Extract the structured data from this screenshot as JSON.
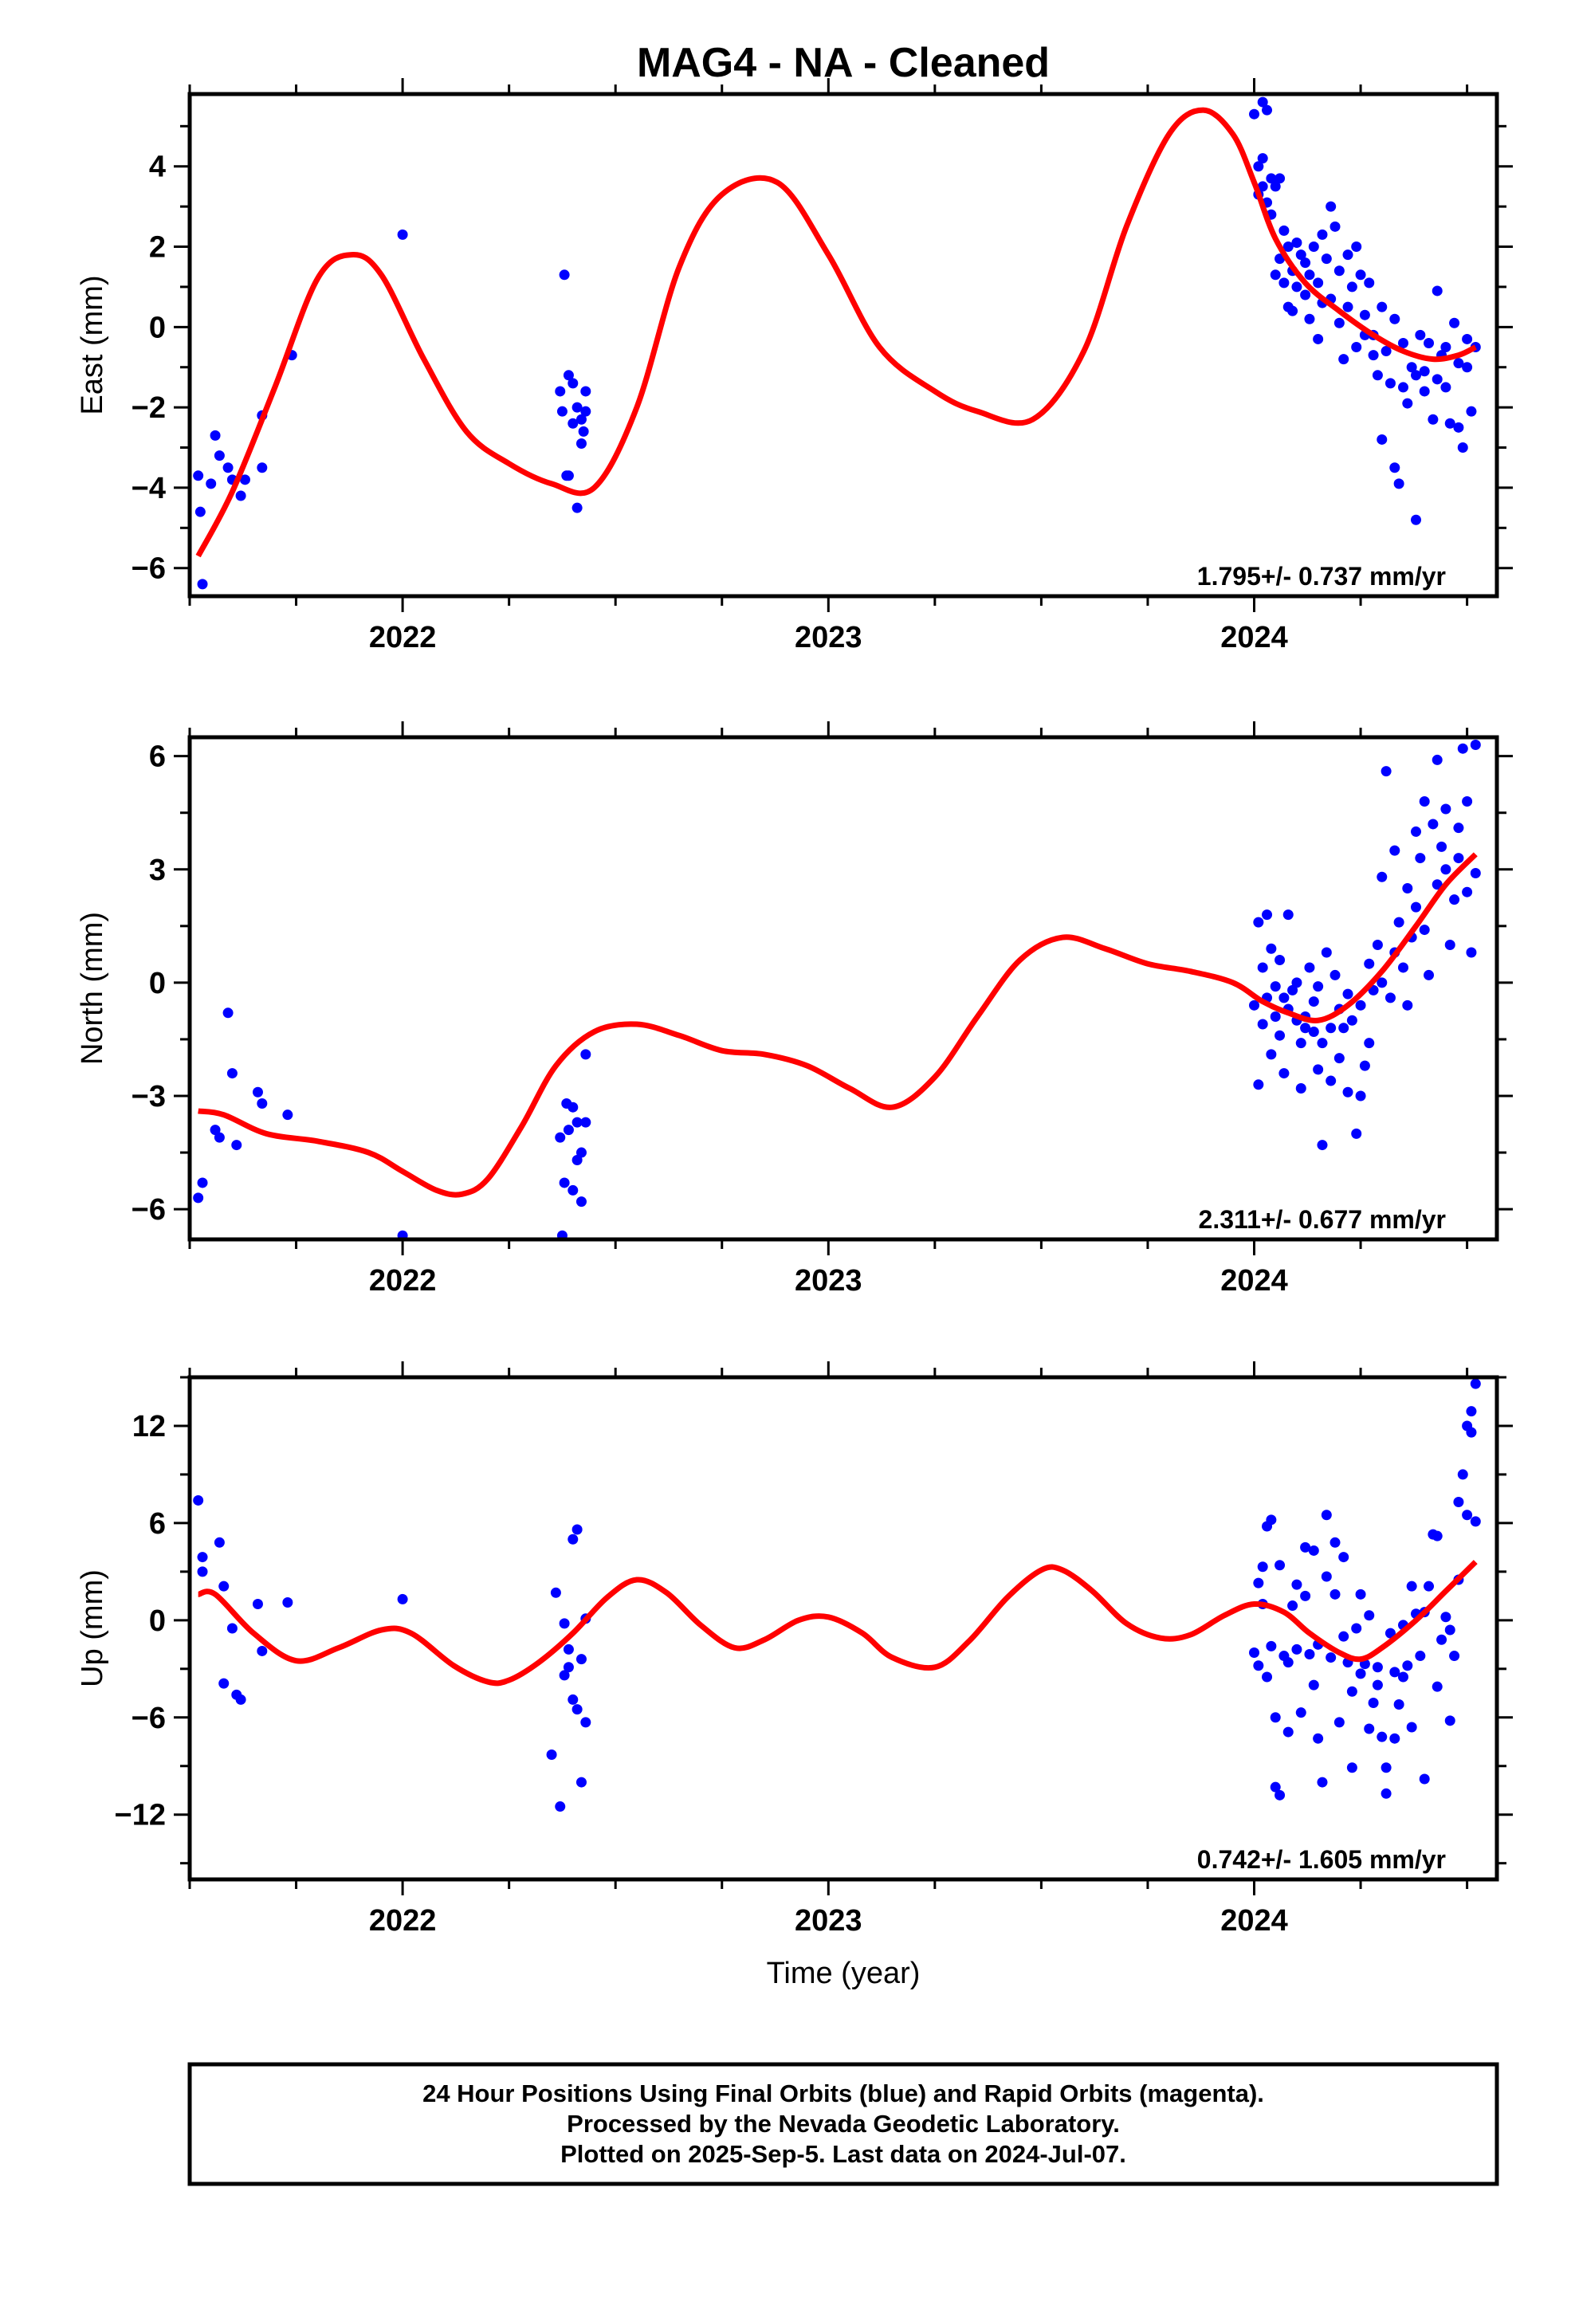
{
  "title": "MAG4  - NA - Cleaned",
  "footer": {
    "lines": [
      "24 Hour Positions Using Final Orbits (blue) and Rapid Orbits (magenta).",
      "Processed by the Nevada Geodetic Laboratory.",
      "Plotted on 2025-Sep-5. Last data on 2024-Jul-07."
    ]
  },
  "colors": {
    "data_points": "#0000ff",
    "model_curve": "#ff0000",
    "axes": "#000000"
  },
  "chart_data": [
    {
      "type": "scatter",
      "name": "east",
      "ylabel": "East (mm)",
      "xlabel": "",
      "xlim": [
        2021.5,
        2024.57
      ],
      "ylim": [
        -6.7,
        5.8
      ],
      "x_ticks": [
        2022,
        2023,
        2024
      ],
      "y_ticks": [
        -6,
        -4,
        -2,
        0,
        2,
        4
      ],
      "rate_text": "1.795+/- 0.737 mm/yr",
      "model_curve": {
        "x": [
          2021.52,
          2021.6,
          2021.7,
          2021.8,
          2021.88,
          2021.95,
          2022.05,
          2022.15,
          2022.25,
          2022.35,
          2022.45,
          2022.55,
          2022.65,
          2022.75,
          2022.88,
          2023.0,
          2023.12,
          2023.25,
          2023.35,
          2023.48,
          2023.6,
          2023.7,
          2023.8,
          2023.88,
          2023.95,
          2024.0,
          2024.05,
          2024.12,
          2024.2,
          2024.28,
          2024.35,
          2024.42,
          2024.48,
          2024.52
        ],
        "y": [
          -5.7,
          -4.1,
          -1.5,
          1.2,
          1.8,
          1.3,
          -0.8,
          -2.6,
          -3.4,
          -3.9,
          -4.0,
          -2.0,
          1.5,
          3.3,
          3.6,
          1.8,
          -0.5,
          -1.6,
          -2.1,
          -2.3,
          -0.6,
          2.5,
          4.8,
          5.4,
          4.8,
          3.6,
          2.2,
          1.1,
          0.4,
          -0.2,
          -0.6,
          -0.8,
          -0.7,
          -0.5
        ]
      },
      "points": {
        "x": [
          2021.52,
          2021.525,
          2021.53,
          2021.55,
          2021.56,
          2021.57,
          2021.59,
          2021.6,
          2021.62,
          2021.63,
          2021.67,
          2021.67,
          2021.74,
          2022.0,
          2022.37,
          2022.375,
          2022.38,
          2022.385,
          2022.39,
          2022.39,
          2022.4,
          2022.4,
          2022.41,
          2022.41,
          2022.42,
          2022.42,
          2022.425,
          2022.43,
          2022.43,
          2024.0,
          2024.01,
          2024.01,
          2024.02,
          2024.02,
          2024.02,
          2024.03,
          2024.03,
          2024.04,
          2024.04,
          2024.05,
          2024.05,
          2024.06,
          2024.06,
          2024.07,
          2024.07,
          2024.08,
          2024.08,
          2024.09,
          2024.09,
          2024.1,
          2024.1,
          2024.11,
          2024.12,
          2024.12,
          2024.13,
          2024.13,
          2024.14,
          2024.15,
          2024.15,
          2024.16,
          2024.16,
          2024.17,
          2024.18,
          2024.18,
          2024.19,
          2024.2,
          2024.2,
          2024.21,
          2024.22,
          2024.22,
          2024.23,
          2024.24,
          2024.24,
          2024.25,
          2024.26,
          2024.26,
          2024.27,
          2024.28,
          2024.28,
          2024.29,
          2024.3,
          2024.3,
          2024.31,
          2024.32,
          2024.33,
          2024.33,
          2024.34,
          2024.35,
          2024.35,
          2024.36,
          2024.37,
          2024.38,
          2024.38,
          2024.39,
          2024.4,
          2024.4,
          2024.41,
          2024.42,
          2024.43,
          2024.43,
          2024.44,
          2024.45,
          2024.45,
          2024.46,
          2024.47,
          2024.48,
          2024.48,
          2024.49,
          2024.5,
          2024.5,
          2024.51,
          2024.52
        ],
        "y": [
          -3.7,
          -4.6,
          -6.4,
          -3.9,
          -2.7,
          -3.2,
          -3.5,
          -3.8,
          -4.2,
          -3.8,
          -3.5,
          -2.2,
          -0.7,
          2.3,
          -1.6,
          -2.1,
          1.3,
          -3.7,
          -1.2,
          -3.7,
          -2.4,
          -1.4,
          -2.0,
          -4.5,
          -2.3,
          -2.9,
          -2.6,
          -1.6,
          -2.1,
          5.3,
          3.3,
          4.0,
          5.6,
          3.5,
          4.2,
          3.1,
          5.4,
          3.7,
          2.8,
          1.3,
          3.5,
          1.7,
          3.7,
          2.4,
          1.1,
          0.5,
          2.0,
          1.4,
          0.4,
          2.1,
          1.0,
          1.8,
          1.6,
          0.8,
          1.3,
          0.2,
          2.0,
          -0.3,
          1.1,
          2.3,
          0.6,
          1.7,
          3.0,
          0.7,
          2.5,
          0.1,
          1.4,
          -0.8,
          1.8,
          0.5,
          1.0,
          -0.5,
          2.0,
          1.3,
          -0.2,
          0.3,
          1.1,
          -0.7,
          -0.2,
          -1.2,
          0.5,
          -2.8,
          -0.6,
          -1.4,
          -3.5,
          0.2,
          -3.9,
          -1.5,
          -0.4,
          -1.9,
          -1.0,
          -4.8,
          -1.2,
          -0.2,
          -1.6,
          -1.1,
          -0.4,
          -2.3,
          0.9,
          -1.3,
          -0.7,
          -0.5,
          -1.5,
          -2.4,
          0.1,
          -0.9,
          -2.5,
          -3.0,
          -0.3,
          -1.0,
          -2.1,
          -0.5
        ]
      }
    },
    {
      "type": "scatter",
      "name": "north",
      "ylabel": "North (mm)",
      "xlabel": "",
      "xlim": [
        2021.5,
        2024.57
      ],
      "ylim": [
        -6.8,
        6.5
      ],
      "x_ticks": [
        2022,
        2023,
        2024
      ],
      "y_ticks": [
        -6,
        -3,
        0,
        3,
        6
      ],
      "rate_text": "2.311+/- 0.677 mm/yr",
      "model_curve": {
        "x": [
          2021.52,
          2021.58,
          2021.68,
          2021.8,
          2021.92,
          2022.0,
          2022.08,
          2022.14,
          2022.2,
          2022.28,
          2022.36,
          2022.45,
          2022.55,
          2022.65,
          2022.75,
          2022.85,
          2022.95,
          2023.05,
          2023.15,
          2023.25,
          2023.35,
          2023.45,
          2023.55,
          2023.65,
          2023.75,
          2023.85,
          2023.95,
          2024.02,
          2024.08,
          2024.15,
          2024.22,
          2024.3,
          2024.38,
          2024.45,
          2024.52
        ],
        "y": [
          -3.4,
          -3.5,
          -4.0,
          -4.2,
          -4.5,
          -5.0,
          -5.5,
          -5.6,
          -5.2,
          -3.8,
          -2.2,
          -1.3,
          -1.1,
          -1.4,
          -1.8,
          -1.9,
          -2.2,
          -2.8,
          -3.3,
          -2.5,
          -0.9,
          0.6,
          1.2,
          0.9,
          0.5,
          0.3,
          0.0,
          -0.5,
          -0.8,
          -1.0,
          -0.6,
          0.3,
          1.5,
          2.6,
          3.4
        ]
      },
      "points": {
        "x": [
          2021.52,
          2021.53,
          2021.56,
          2021.57,
          2021.59,
          2021.6,
          2021.61,
          2021.66,
          2021.67,
          2021.73,
          2022.0,
          2022.37,
          2022.375,
          2022.38,
          2022.385,
          2022.39,
          2022.4,
          2022.4,
          2022.41,
          2022.41,
          2022.42,
          2022.42,
          2022.43,
          2022.43,
          2024.0,
          2024.01,
          2024.01,
          2024.02,
          2024.02,
          2024.03,
          2024.03,
          2024.04,
          2024.04,
          2024.05,
          2024.05,
          2024.06,
          2024.06,
          2024.07,
          2024.07,
          2024.08,
          2024.08,
          2024.09,
          2024.1,
          2024.1,
          2024.11,
          2024.11,
          2024.12,
          2024.12,
          2024.13,
          2024.14,
          2024.14,
          2024.15,
          2024.15,
          2024.16,
          2024.16,
          2024.17,
          2024.18,
          2024.18,
          2024.19,
          2024.2,
          2024.2,
          2024.21,
          2024.22,
          2024.22,
          2024.23,
          2024.24,
          2024.25,
          2024.25,
          2024.26,
          2024.27,
          2024.27,
          2024.28,
          2024.29,
          2024.3,
          2024.3,
          2024.31,
          2024.32,
          2024.33,
          2024.33,
          2024.34,
          2024.35,
          2024.36,
          2024.36,
          2024.37,
          2024.38,
          2024.38,
          2024.39,
          2024.4,
          2024.4,
          2024.41,
          2024.42,
          2024.43,
          2024.43,
          2024.44,
          2024.45,
          2024.45,
          2024.46,
          2024.47,
          2024.48,
          2024.48,
          2024.49,
          2024.5,
          2024.5,
          2024.51,
          2024.52,
          2024.52
        ],
        "y": [
          -5.7,
          -5.3,
          -3.9,
          -4.1,
          -0.8,
          -2.4,
          -4.3,
          -2.9,
          -3.2,
          -3.5,
          -6.7,
          -4.1,
          -6.7,
          -5.3,
          -3.2,
          -3.9,
          -5.5,
          -3.3,
          -4.7,
          -3.7,
          -4.5,
          -5.8,
          -3.7,
          -1.9,
          -0.6,
          1.6,
          -2.7,
          0.4,
          -1.1,
          1.8,
          -0.4,
          -1.9,
          0.9,
          -0.1,
          -0.9,
          -1.4,
          0.6,
          -0.4,
          -2.4,
          1.8,
          -0.7,
          -0.2,
          -1.0,
          0.0,
          -2.8,
          -1.6,
          -1.2,
          -0.9,
          0.4,
          -1.3,
          -0.5,
          -2.3,
          -0.1,
          -1.6,
          -4.3,
          0.8,
          -1.2,
          -2.6,
          0.2,
          -0.7,
          -2.0,
          -1.2,
          -0.3,
          -2.9,
          -1.0,
          -4.0,
          -0.6,
          -3.0,
          -2.2,
          0.5,
          -1.6,
          -0.2,
          1.0,
          0.0,
          2.8,
          5.6,
          -0.4,
          0.8,
          3.5,
          1.6,
          0.4,
          2.5,
          -0.6,
          1.2,
          4.0,
          2.0,
          3.3,
          4.8,
          1.4,
          0.2,
          4.2,
          2.6,
          5.9,
          3.6,
          3.0,
          4.6,
          1.0,
          2.2,
          4.1,
          3.3,
          6.2,
          2.4,
          4.8,
          0.8,
          2.9,
          6.3
        ]
      }
    },
    {
      "type": "scatter",
      "name": "up",
      "ylabel": "Up (mm)",
      "xlabel": "Time (year)",
      "xlim": [
        2021.5,
        2024.57
      ],
      "ylim": [
        -16,
        15
      ],
      "x_ticks": [
        2022,
        2023,
        2024
      ],
      "y_ticks": [
        -12,
        -6,
        0,
        6,
        12
      ],
      "rate_text": "0.742+/- 1.605 mm/yr",
      "model_curve": {
        "x": [
          2021.52,
          2021.56,
          2021.65,
          2021.75,
          2021.85,
          2021.95,
          2022.02,
          2022.12,
          2022.2,
          2022.25,
          2022.32,
          2022.4,
          2022.48,
          2022.55,
          2022.62,
          2022.7,
          2022.78,
          2022.85,
          2022.93,
          2023.0,
          2023.08,
          2023.15,
          2023.25,
          2023.33,
          2023.42,
          2023.5,
          2023.55,
          2023.62,
          2023.7,
          2023.78,
          2023.85,
          2023.93,
          2024.0,
          2024.07,
          2024.13,
          2024.2,
          2024.25,
          2024.3,
          2024.38,
          2024.45,
          2024.52
        ],
        "y": [
          1.6,
          1.6,
          -0.8,
          -2.5,
          -1.7,
          -0.6,
          -0.8,
          -2.8,
          -3.8,
          -3.7,
          -2.6,
          -0.8,
          1.4,
          2.5,
          1.7,
          -0.3,
          -1.7,
          -1.2,
          0.0,
          0.2,
          -0.8,
          -2.3,
          -2.9,
          -1.3,
          1.4,
          3.1,
          3.1,
          1.8,
          -0.2,
          -1.1,
          -0.9,
          0.3,
          1.0,
          0.5,
          -0.8,
          -2.0,
          -2.4,
          -1.7,
          0.0,
          1.8,
          3.6
        ]
      },
      "points": {
        "x": [
          2021.52,
          2021.53,
          2021.53,
          2021.57,
          2021.58,
          2021.58,
          2021.6,
          2021.61,
          2021.62,
          2021.66,
          2021.67,
          2021.73,
          2022.0,
          2022.35,
          2022.36,
          2022.37,
          2022.38,
          2022.38,
          2022.39,
          2022.39,
          2022.4,
          2022.4,
          2022.41,
          2022.41,
          2022.42,
          2022.42,
          2022.43,
          2022.43,
          2024.0,
          2024.01,
          2024.01,
          2024.02,
          2024.02,
          2024.03,
          2024.03,
          2024.04,
          2024.04,
          2024.05,
          2024.05,
          2024.06,
          2024.06,
          2024.07,
          2024.08,
          2024.08,
          2024.09,
          2024.1,
          2024.1,
          2024.11,
          2024.12,
          2024.12,
          2024.13,
          2024.14,
          2024.14,
          2024.15,
          2024.15,
          2024.16,
          2024.17,
          2024.17,
          2024.18,
          2024.19,
          2024.19,
          2024.2,
          2024.21,
          2024.21,
          2024.22,
          2024.23,
          2024.23,
          2024.24,
          2024.25,
          2024.25,
          2024.26,
          2024.27,
          2024.27,
          2024.28,
          2024.29,
          2024.29,
          2024.3,
          2024.31,
          2024.31,
          2024.32,
          2024.33,
          2024.33,
          2024.34,
          2024.35,
          2024.35,
          2024.36,
          2024.37,
          2024.37,
          2024.38,
          2024.39,
          2024.4,
          2024.4,
          2024.41,
          2024.42,
          2024.43,
          2024.43,
          2024.44,
          2024.45,
          2024.46,
          2024.46,
          2024.47,
          2024.48,
          2024.48,
          2024.49,
          2024.5,
          2024.5,
          2024.51,
          2024.51,
          2024.52,
          2024.52
        ],
        "y": [
          7.4,
          3.9,
          3.0,
          4.8,
          2.1,
          -3.9,
          -0.5,
          -4.6,
          -4.9,
          1.0,
          -1.9,
          1.1,
          1.3,
          -8.3,
          1.7,
          -11.5,
          -3.4,
          -0.2,
          -2.9,
          -1.8,
          -4.9,
          5.0,
          -5.5,
          5.6,
          -2.4,
          -10.0,
          -6.3,
          0.1,
          -2.0,
          2.3,
          -2.8,
          3.3,
          1.0,
          5.8,
          -3.5,
          6.2,
          -1.6,
          -10.3,
          -6.0,
          -10.8,
          3.4,
          -2.2,
          -6.9,
          -2.6,
          0.9,
          2.2,
          -1.8,
          -5.7,
          4.5,
          1.5,
          -2.1,
          4.3,
          -4.0,
          -7.3,
          -1.5,
          -10.0,
          2.7,
          6.5,
          -2.3,
          4.8,
          1.6,
          -6.3,
          -1.0,
          3.9,
          -2.6,
          -4.4,
          -9.1,
          -0.5,
          -3.3,
          1.6,
          -2.7,
          -6.7,
          0.3,
          -5.1,
          -4.0,
          -2.9,
          -7.2,
          -10.7,
          -9.1,
          -0.8,
          -3.2,
          -7.3,
          -5.2,
          -0.3,
          -3.5,
          -2.8,
          -6.6,
          2.1,
          0.4,
          -2.2,
          -9.8,
          0.5,
          2.1,
          5.3,
          5.2,
          -4.1,
          -1.2,
          0.2,
          -6.2,
          -0.6,
          -2.2,
          2.5,
          7.3,
          9.0,
          12.0,
          6.5,
          12.9,
          11.6,
          14.6,
          6.1
        ]
      }
    }
  ]
}
